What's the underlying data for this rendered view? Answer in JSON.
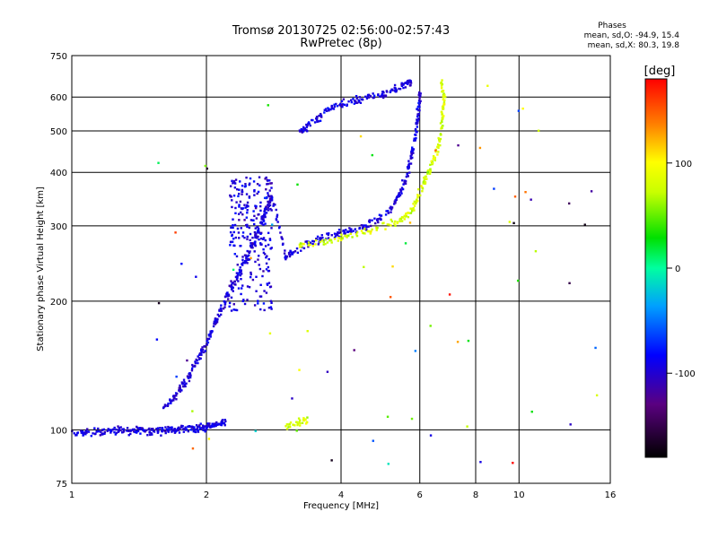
{
  "chart_data": {
    "type": "scatter",
    "title": "Tromsø 20130725 02:56:00-02:57:43",
    "subtitle": "RwPretec (8p)",
    "xlabel": "Frequency [MHz]",
    "ylabel": "Stationary phase Virtual Height [km]",
    "x_scale": "log",
    "y_scale": "log",
    "xlim": [
      1,
      16
    ],
    "ylim": [
      75,
      750
    ],
    "x_ticks": [
      1,
      2,
      4,
      6,
      8,
      10,
      16
    ],
    "y_ticks": [
      75,
      100,
      200,
      300,
      400,
      500,
      600,
      750
    ],
    "grid": true,
    "phase_stats": {
      "heading": "Phases",
      "line_o": "mean, sd,O: -94.9, 15.4",
      "line_x": "mean, sd,X:  80.3, 19.8"
    },
    "colorbar": {
      "label": "[deg]",
      "ticks": [
        100,
        0,
        -100
      ],
      "range": [
        -180,
        180
      ]
    },
    "o_mode_phase_mean": -94.9,
    "o_mode_phase_sd": 15.4,
    "x_mode_phase_mean": 80.3,
    "x_mode_phase_sd": 19.8,
    "o_mode_trace": [
      [
        1.0,
        98
      ],
      [
        1.1,
        99
      ],
      [
        1.2,
        99
      ],
      [
        1.3,
        100
      ],
      [
        1.4,
        100
      ],
      [
        1.5,
        99
      ],
      [
        1.6,
        100
      ],
      [
        1.7,
        100
      ],
      [
        1.8,
        101
      ],
      [
        1.9,
        101
      ],
      [
        2.0,
        102
      ],
      [
        2.1,
        103
      ],
      [
        2.2,
        104
      ],
      [
        1.6,
        112
      ],
      [
        1.7,
        120
      ],
      [
        1.8,
        130
      ],
      [
        1.9,
        145
      ],
      [
        2.0,
        160
      ],
      [
        2.1,
        180
      ],
      [
        2.2,
        200
      ],
      [
        2.3,
        220
      ],
      [
        2.4,
        240
      ],
      [
        2.5,
        260
      ],
      [
        2.6,
        290
      ],
      [
        2.7,
        320
      ],
      [
        2.8,
        350
      ],
      [
        3.0,
        255
      ],
      [
        3.3,
        270
      ],
      [
        3.6,
        280
      ],
      [
        4.0,
        290
      ],
      [
        4.4,
        296
      ],
      [
        4.8,
        308
      ],
      [
        5.2,
        330
      ],
      [
        5.5,
        370
      ],
      [
        5.7,
        420
      ],
      [
        5.85,
        480
      ],
      [
        5.95,
        550
      ],
      [
        6.0,
        610
      ],
      [
        3.2,
        495
      ],
      [
        3.5,
        530
      ],
      [
        3.8,
        570
      ],
      [
        4.2,
        585
      ],
      [
        4.6,
        600
      ],
      [
        5.0,
        610
      ],
      [
        5.5,
        640
      ],
      [
        5.8,
        650
      ]
    ],
    "x_mode_trace": [
      [
        3.0,
        102
      ],
      [
        3.2,
        104
      ],
      [
        3.4,
        106
      ],
      [
        3.2,
        270
      ],
      [
        3.6,
        275
      ],
      [
        4.0,
        282
      ],
      [
        4.5,
        290
      ],
      [
        5.0,
        300
      ],
      [
        5.5,
        312
      ],
      [
        5.8,
        330
      ],
      [
        6.0,
        360
      ],
      [
        6.2,
        390
      ],
      [
        6.4,
        420
      ],
      [
        6.6,
        460
      ],
      [
        6.7,
        500
      ],
      [
        6.75,
        550
      ],
      [
        6.8,
        600
      ],
      [
        6.7,
        650
      ]
    ]
  }
}
